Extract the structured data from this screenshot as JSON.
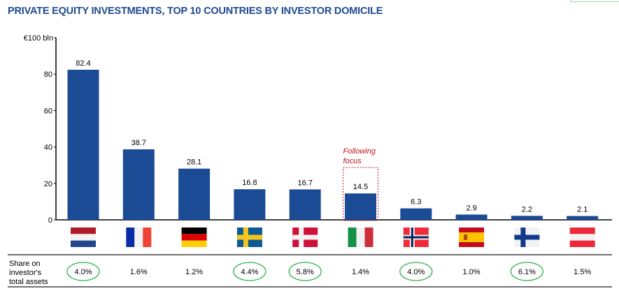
{
  "chart_data": {
    "type": "bar",
    "title": "PRIVATE EQUITY INVESTMENTS, TOP 10 COUNTRIES BY INVESTOR DOMICILE",
    "ylabel": "€100 bln",
    "ylim": [
      0,
      100
    ],
    "yticks": [
      "0",
      "20",
      "40",
      "60",
      "80"
    ],
    "categories": [
      "nl-flag-icon",
      "fr-flag-icon",
      "de-flag-icon",
      "se-flag-icon",
      "dk-flag-icon",
      "it-flag-icon",
      "no-flag-icon",
      "es-flag-icon",
      "fi-flag-icon",
      "at-flag-icon"
    ],
    "values": [
      82.4,
      38.7,
      28.1,
      16.8,
      16.7,
      14.5,
      6.3,
      2.9,
      2.2,
      2.1
    ],
    "value_labels": [
      "82.4",
      "38.7",
      "28.1",
      "16.8",
      "16.7",
      "14.5",
      "6.3",
      "2.9",
      "2.2",
      "2.1"
    ],
    "annotation": {
      "text_line1": "Following",
      "text_line2": "focus",
      "category_index": 5
    },
    "table": {
      "row_label_lines": [
        "Share on",
        "investor's",
        "total assets"
      ],
      "values": [
        "4.0%",
        "1.6%",
        "1.2%",
        "4.4%",
        "5.8%",
        "1.4%",
        "4.0%",
        "1.0%",
        "6.1%",
        "1.5%"
      ],
      "highlighted": [
        true,
        false,
        false,
        true,
        true,
        false,
        true,
        false,
        true,
        false
      ]
    },
    "colors": {
      "bar": "#1b4b94",
      "title": "#1f4a8f",
      "highlight": "#2bb34a",
      "annotation": "#c0121b"
    }
  }
}
